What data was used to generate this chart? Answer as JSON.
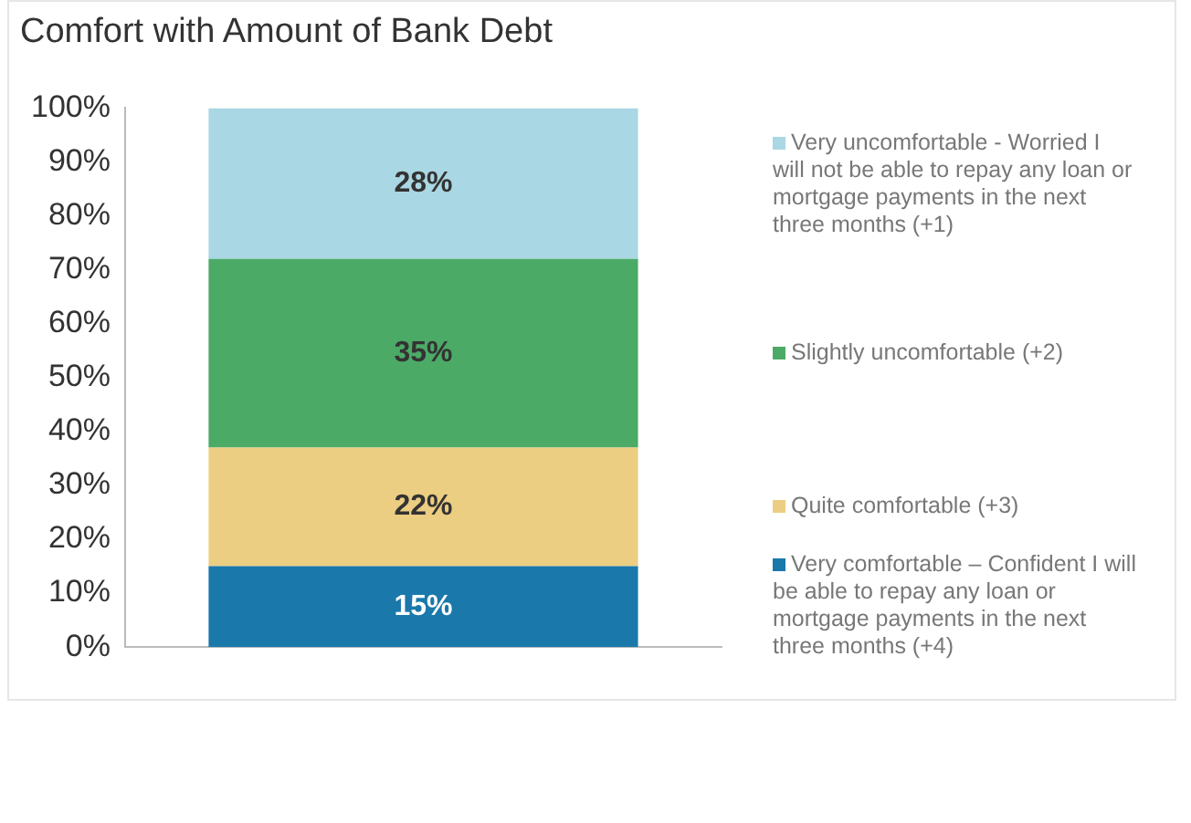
{
  "chart_data": {
    "type": "bar",
    "stacked": true,
    "title": "Comfort with Amount of Bank Debt",
    "categories": [
      null
    ],
    "series": [
      {
        "name": "Very comfortable – Confident I will be able to repay any loan or mortgage payments in the next three months (+4)",
        "color": "#1a78aa",
        "values": [
          15
        ],
        "value_labels": [
          "15%"
        ]
      },
      {
        "name": "Quite comfortable (+3)",
        "color": "#ecce82",
        "values": [
          22
        ],
        "value_labels": [
          "22%"
        ]
      },
      {
        "name": "Slightly uncomfortable (+2)",
        "color": "#4caa67",
        "values": [
          35
        ],
        "value_labels": [
          "35%"
        ]
      },
      {
        "name": "Very uncomfortable - Worried I will not be able to repay any loan or mortgage payments in the next three months (+1)",
        "color": "#a9d7e3",
        "values": [
          28
        ],
        "value_labels": [
          "28%"
        ]
      }
    ],
    "ylim": [
      0,
      100
    ],
    "yticks": [
      {
        "value": 0,
        "label": "0%"
      },
      {
        "value": 10,
        "label": "10%"
      },
      {
        "value": 20,
        "label": "20%"
      },
      {
        "value": 30,
        "label": "30%"
      },
      {
        "value": 40,
        "label": "40%"
      },
      {
        "value": 50,
        "label": "50%"
      },
      {
        "value": 60,
        "label": "60%"
      },
      {
        "value": 70,
        "label": "70%"
      },
      {
        "value": 80,
        "label": "80%"
      },
      {
        "value": 90,
        "label": "90%"
      },
      {
        "value": 100,
        "label": "100%"
      }
    ],
    "grid": false,
    "legend": "right"
  }
}
